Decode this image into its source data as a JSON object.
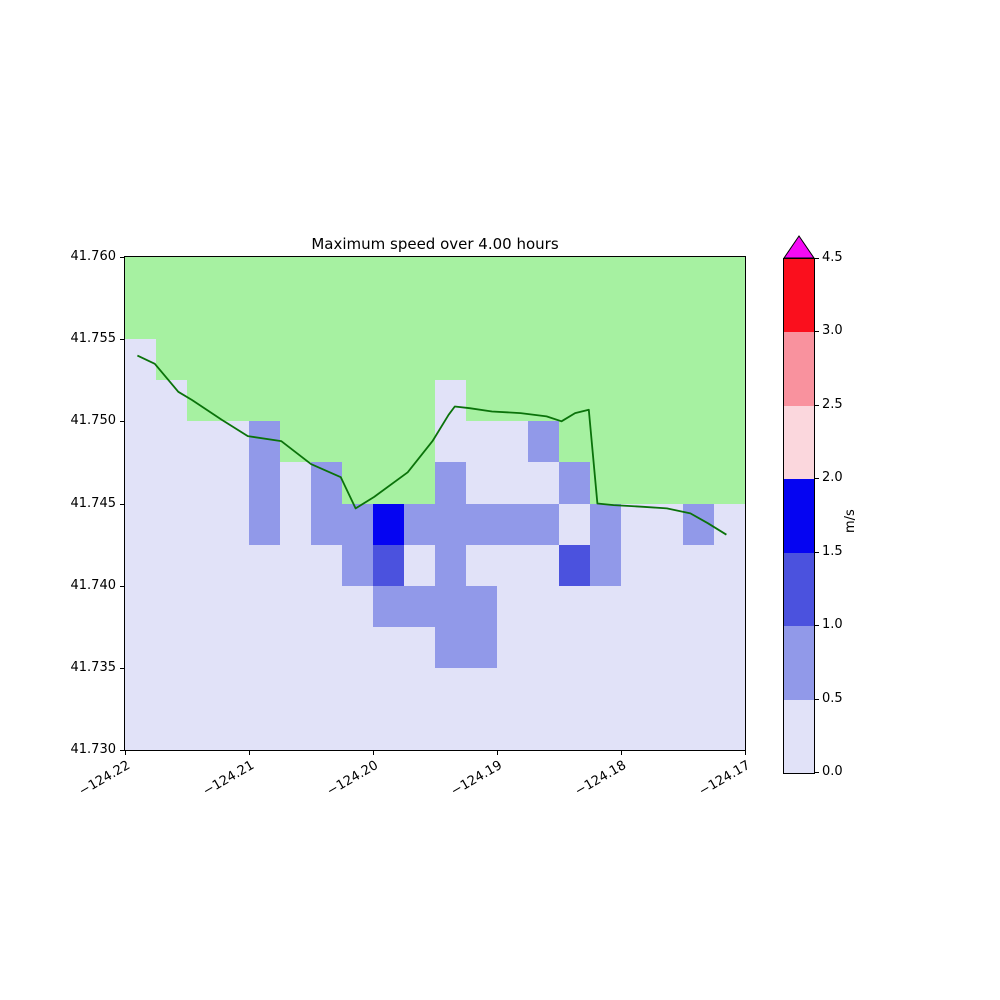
{
  "title": "Maximum speed over 4.00 hours",
  "axes": {
    "x_tick_labels": [
      "−124.22",
      "−124.21",
      "−124.20",
      "−124.19",
      "−124.18",
      "−124.17"
    ],
    "y_tick_labels": [
      "41.760",
      "41.755",
      "41.750",
      "41.745",
      "41.740",
      "41.735",
      "41.730"
    ]
  },
  "colorbar": {
    "label": "m/s",
    "tick_labels": [
      "0.0",
      "0.5",
      "1.0",
      "1.5",
      "2.0",
      "2.5",
      "3.0",
      "4.5"
    ],
    "over_color": "#f50af5",
    "bands": [
      {
        "range": [
          0.0,
          0.5
        ],
        "color": "#e1e2f8"
      },
      {
        "range": [
          0.5,
          1.0
        ],
        "color": "#9199e9"
      },
      {
        "range": [
          1.0,
          1.5
        ],
        "color": "#4b52de"
      },
      {
        "range": [
          1.5,
          2.0
        ],
        "color": "#0504f2"
      },
      {
        "range": [
          2.0,
          2.5
        ],
        "color": "#fbd7dd"
      },
      {
        "range": [
          2.5,
          3.0
        ],
        "color": "#f9929e"
      },
      {
        "range": [
          3.0,
          4.5
        ],
        "color": "#fa0f1d"
      }
    ]
  },
  "colors": {
    "land": "#a6f1a1",
    "coastline": "#0a720a",
    "axis": "#000000"
  },
  "chart_data": {
    "type": "heatmap",
    "title": "Maximum speed over 4.00 hours",
    "colorbar_label": "m/s",
    "xlabel": "",
    "ylabel": "",
    "xlim": [
      -124.22,
      -124.17
    ],
    "ylim": [
      41.73,
      41.76
    ],
    "x_ticks": [
      -124.22,
      -124.21,
      -124.2,
      -124.19,
      -124.18,
      -124.17
    ],
    "y_ticks": [
      41.76,
      41.755,
      41.75,
      41.745,
      41.74,
      41.735,
      41.73
    ],
    "color_boundaries": [
      0.0,
      0.5,
      1.0,
      1.5,
      2.0,
      2.5,
      3.0,
      4.5
    ],
    "cell_size_deg": {
      "lon": 0.0025,
      "lat": 0.0025
    },
    "grid_origin": {
      "lon_left": -124.22,
      "lat_top": 41.76
    },
    "land_marker": "L",
    "rows": [
      [
        "L",
        "L",
        "L",
        "L",
        "L",
        "L",
        "L",
        "L",
        "L",
        "L",
        "L",
        "L",
        "L",
        "L",
        "L",
        "L",
        "L",
        "L",
        "L",
        "L"
      ],
      [
        "L",
        "L",
        "L",
        "L",
        "L",
        "L",
        "L",
        "L",
        "L",
        "L",
        "L",
        "L",
        "L",
        "L",
        "L",
        "L",
        "L",
        "L",
        "L",
        "L"
      ],
      [
        0.25,
        "L",
        "L",
        "L",
        "L",
        "L",
        "L",
        "L",
        "L",
        "L",
        "L",
        "L",
        "L",
        "L",
        "L",
        "L",
        "L",
        "L",
        "L",
        "L"
      ],
      [
        0.25,
        0.25,
        "L",
        "L",
        "L",
        "L",
        "L",
        "L",
        "L",
        "L",
        0.25,
        "L",
        "L",
        "L",
        "L",
        "L",
        "L",
        "L",
        "L",
        "L"
      ],
      [
        0.25,
        0.25,
        0.25,
        0.25,
        0.75,
        "L",
        "L",
        "L",
        "L",
        "L",
        0.25,
        0.25,
        0.25,
        0.75,
        "L",
        "L",
        "L",
        "L",
        "L",
        "L"
      ],
      [
        0.25,
        0.25,
        0.25,
        0.25,
        0.75,
        0.25,
        0.75,
        "L",
        "L",
        "L",
        0.75,
        0.25,
        0.25,
        0.25,
        0.75,
        "L",
        "L",
        "L",
        "L",
        "L"
      ],
      [
        0.25,
        0.25,
        0.25,
        0.25,
        0.75,
        0.25,
        0.75,
        0.75,
        1.75,
        0.75,
        0.75,
        0.75,
        0.75,
        0.75,
        0.25,
        0.75,
        0.25,
        0.25,
        0.75,
        0.25
      ],
      [
        0.25,
        0.25,
        0.25,
        0.25,
        0.25,
        0.25,
        0.25,
        0.75,
        1.25,
        0.25,
        0.75,
        0.25,
        0.25,
        0.25,
        1.25,
        0.75,
        0.25,
        0.25,
        0.25,
        0.25
      ],
      [
        0.25,
        0.25,
        0.25,
        0.25,
        0.25,
        0.25,
        0.25,
        0.25,
        0.75,
        0.75,
        0.75,
        0.75,
        0.25,
        0.25,
        0.25,
        0.25,
        0.25,
        0.25,
        0.25,
        0.25
      ],
      [
        0.25,
        0.25,
        0.25,
        0.25,
        0.25,
        0.25,
        0.25,
        0.25,
        0.25,
        0.25,
        0.75,
        0.75,
        0.25,
        0.25,
        0.25,
        0.25,
        0.25,
        0.25,
        0.25,
        0.25
      ],
      [
        0.25,
        0.25,
        0.25,
        0.25,
        0.25,
        0.25,
        0.25,
        0.25,
        0.25,
        0.25,
        0.25,
        0.25,
        0.25,
        0.25,
        0.25,
        0.25,
        0.25,
        0.25,
        0.25,
        0.25
      ],
      [
        0.25,
        0.25,
        0.25,
        0.25,
        0.25,
        0.25,
        0.25,
        0.25,
        0.25,
        0.25,
        0.25,
        0.25,
        0.25,
        0.25,
        0.25,
        0.25,
        0.25,
        0.25,
        0.25,
        0.25
      ]
    ],
    "coastline": [
      [
        -124.219,
        41.754
      ],
      [
        -124.2176,
        41.7535
      ],
      [
        -124.2157,
        41.7518
      ],
      [
        -124.2146,
        41.7513
      ],
      [
        -124.2122,
        41.7501
      ],
      [
        -124.2101,
        41.7491
      ],
      [
        -124.2074,
        41.7488
      ],
      [
        -124.205,
        41.7474
      ],
      [
        -124.2026,
        41.7466
      ],
      [
        -124.2014,
        41.7447
      ],
      [
        -124.1999,
        41.7454
      ],
      [
        -124.1972,
        41.7469
      ],
      [
        -124.1952,
        41.7488
      ],
      [
        -124.1939,
        41.7504
      ],
      [
        -124.1934,
        41.7509
      ],
      [
        -124.1922,
        41.7508
      ],
      [
        -124.1904,
        41.7506
      ],
      [
        -124.1881,
        41.7505
      ],
      [
        -124.186,
        41.7503
      ],
      [
        -124.1848,
        41.75
      ],
      [
        -124.1837,
        41.7505
      ],
      [
        -124.1826,
        41.7507
      ],
      [
        -124.1819,
        41.745
      ],
      [
        -124.1806,
        41.7449
      ],
      [
        -124.1782,
        41.7448
      ],
      [
        -124.1763,
        41.7447
      ],
      [
        -124.1744,
        41.7444
      ],
      [
        -124.173,
        41.7438
      ],
      [
        -124.1715,
        41.7431
      ]
    ]
  }
}
